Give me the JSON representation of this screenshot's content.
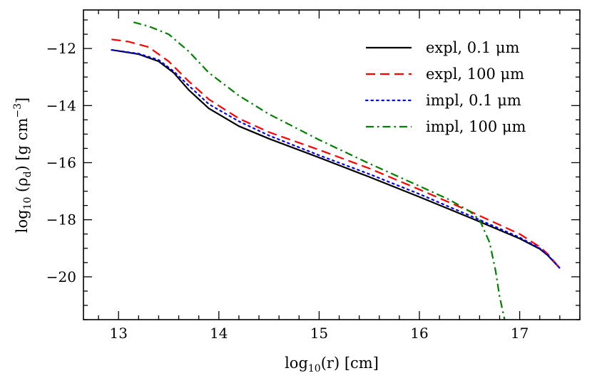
{
  "chart_data": {
    "type": "line",
    "title": "",
    "xlabel": "log10(r) [cm]",
    "ylabel": "log10(ρd) [g cm^-3]",
    "xlabel_parts": {
      "func": "log",
      "sub": "10",
      "arg": "(r)",
      "unit": " [cm]"
    },
    "ylabel_parts": {
      "func": "log",
      "sub": "10",
      "open": " (ρ",
      "rho_sub": "d",
      "mid": ") [g cm",
      "exp": "−3",
      "close": "]"
    },
    "xlim": [
      12.65,
      17.6
    ],
    "ylim": [
      -21.5,
      -10.65
    ],
    "x_ticks": [
      13,
      14,
      15,
      16,
      17
    ],
    "x_tick_labels": [
      "13",
      "14",
      "15",
      "16",
      "17"
    ],
    "y_ticks": [
      -12,
      -14,
      -16,
      -18,
      -20
    ],
    "y_tick_labels": [
      "−12",
      "−14",
      "−16",
      "−18",
      "−20"
    ],
    "x_minor_step": 0.2,
    "y_minor_step": 0.5,
    "grid": false,
    "legend_position": "top-right",
    "series": [
      {
        "name": "expl, 0.1 μm",
        "color": "#000000",
        "dash": "solid",
        "x": [
          12.93,
          13.2,
          13.4,
          13.55,
          13.7,
          13.9,
          14.2,
          14.5,
          15.0,
          15.5,
          16.0,
          16.5,
          17.0,
          17.2,
          17.28,
          17.4
        ],
        "y": [
          -12.05,
          -12.2,
          -12.45,
          -12.85,
          -13.45,
          -14.1,
          -14.72,
          -15.16,
          -15.82,
          -16.5,
          -17.2,
          -17.92,
          -18.66,
          -19.02,
          -19.25,
          -19.7
        ]
      },
      {
        "name": "expl, 100 μm",
        "color": "#ff0000",
        "dash": "dashed",
        "x": [
          12.93,
          13.1,
          13.3,
          13.5,
          13.7,
          13.9,
          14.2,
          14.5,
          15.0,
          15.5,
          16.0,
          16.5,
          17.0,
          17.2,
          17.28,
          17.4
        ],
        "y": [
          -11.68,
          -11.76,
          -11.95,
          -12.45,
          -13.15,
          -13.78,
          -14.45,
          -14.93,
          -15.55,
          -16.2,
          -16.94,
          -17.7,
          -18.5,
          -18.95,
          -19.2,
          -19.7
        ]
      },
      {
        "name": "impl, 0.1 μm",
        "color": "#0000ff",
        "dash": "dotted",
        "x": [
          12.93,
          13.2,
          13.4,
          13.55,
          13.7,
          13.9,
          14.2,
          14.5,
          15.0,
          15.5,
          16.0,
          16.5,
          17.0,
          17.2,
          17.28,
          17.4
        ],
        "y": [
          -12.05,
          -12.18,
          -12.4,
          -12.8,
          -13.3,
          -13.95,
          -14.55,
          -15.05,
          -15.74,
          -16.4,
          -17.1,
          -17.85,
          -18.62,
          -19.0,
          -19.23,
          -19.7
        ]
      },
      {
        "name": "impl, 100 μm",
        "color": "#008000",
        "dash": "dashdot",
        "x": [
          13.15,
          13.3,
          13.5,
          13.7,
          13.9,
          14.2,
          14.5,
          15.0,
          15.5,
          16.0,
          16.3,
          16.5,
          16.6,
          16.7,
          16.76,
          16.8,
          16.85
        ],
        "y": [
          -11.08,
          -11.22,
          -11.5,
          -12.1,
          -12.85,
          -13.65,
          -14.3,
          -15.2,
          -16.03,
          -16.82,
          -17.3,
          -17.7,
          -18.0,
          -18.8,
          -19.8,
          -20.7,
          -21.5
        ]
      }
    ]
  }
}
